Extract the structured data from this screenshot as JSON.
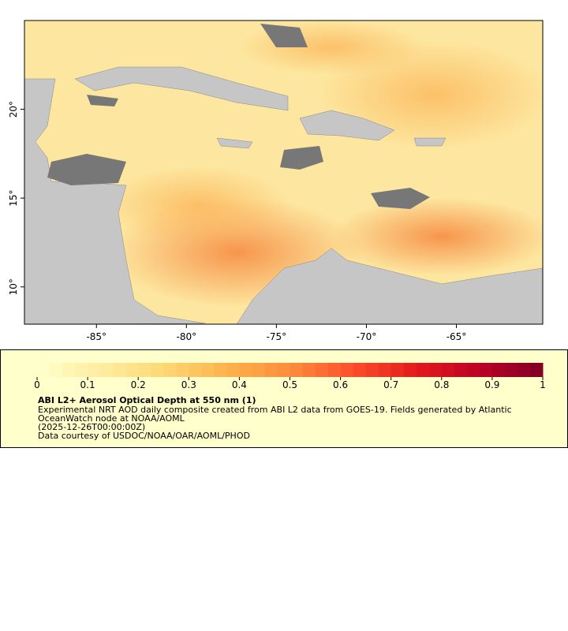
{
  "chart_data": {
    "type": "map",
    "xlim": [
      -89,
      -60.2
    ],
    "ylim": [
      7.9,
      25
    ],
    "xticks": [
      {
        "value": -85,
        "label": "-85°"
      },
      {
        "value": -80,
        "label": "-80°"
      },
      {
        "value": -75,
        "label": "-75°"
      },
      {
        "value": -70,
        "label": "-70°"
      },
      {
        "value": -65,
        "label": "-65°"
      }
    ],
    "yticks": [
      {
        "value": 10,
        "label": "10°"
      },
      {
        "value": 15,
        "label": "15°"
      },
      {
        "value": 20,
        "label": "20°"
      }
    ],
    "colorbar": {
      "lim": [
        0,
        1
      ],
      "ticks": [
        0,
        0.1,
        0.2,
        0.3,
        0.4,
        0.5,
        0.6,
        0.7,
        0.8,
        0.9,
        1
      ],
      "colors": [
        "#ffffcc",
        "#ffeda0",
        "#fed976",
        "#feb24c",
        "#fd8d3c",
        "#fc4e2a",
        "#e31a1c",
        "#bd0026",
        "#800026"
      ]
    },
    "title": "ABI L2+ Aerosol Optical Depth at 550 nm (1)",
    "description": "Experimental NRT AOD daily composite created from ABI L2 data from GOES-19. Fields generated by Atlantic OceanWatch node at NOAA/AOML",
    "time": "(2025-12-26T00:00:00Z)",
    "credit": "Data courtesy of USDOC/NOAA/OAR/AOML/PHOD"
  }
}
